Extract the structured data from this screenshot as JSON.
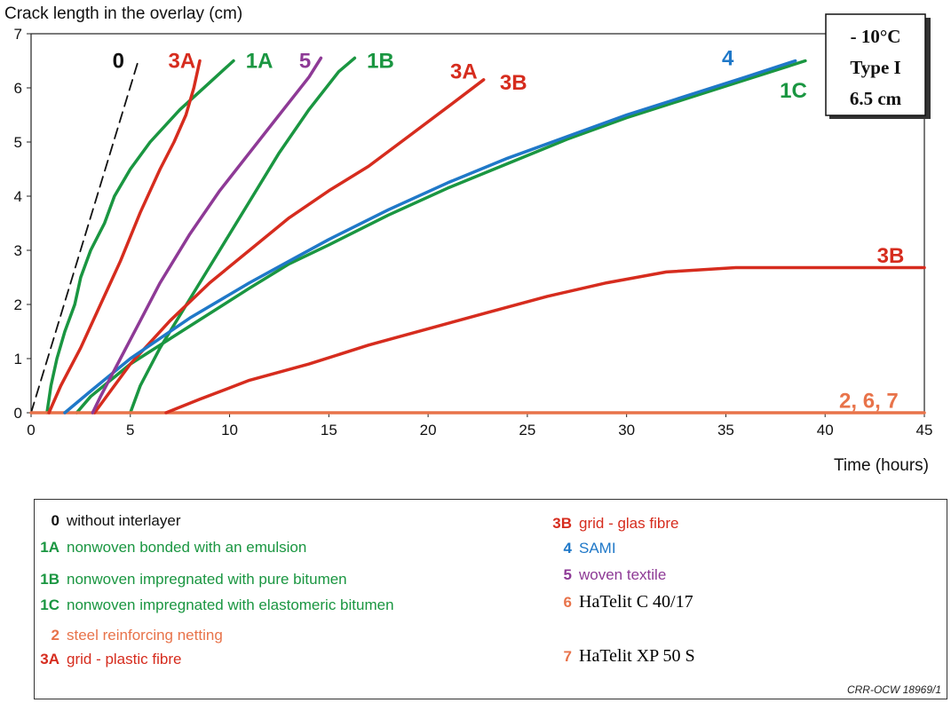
{
  "chart_data": {
    "type": "line",
    "title": "",
    "ylabel": "Crack length in the overlay (cm)",
    "xlabel": "Time (hours)",
    "xlim": [
      0,
      45
    ],
    "ylim": [
      0,
      7
    ],
    "xticks": [
      "0",
      "5",
      "10",
      "15",
      "20",
      "25",
      "30",
      "35",
      "40",
      "45"
    ],
    "yticks": [
      "0",
      "1",
      "2",
      "3",
      "4",
      "5",
      "6",
      "7"
    ],
    "grid": false,
    "info_box": [
      "- 10°C",
      "Type I",
      "6.5 cm"
    ],
    "credit": "CRR-OCW 18969/1",
    "series": [
      {
        "name": "0",
        "color": "#111111",
        "dashed": true,
        "x": [
          0,
          5.4
        ],
        "y": [
          0,
          6.5
        ]
      },
      {
        "name": "1A",
        "color": "#1a9641",
        "x": [
          0.8,
          1.0,
          1.3,
          1.7,
          2.2,
          2.5,
          3.0,
          3.7,
          4.2,
          5.0,
          6.0,
          7.5,
          9.0,
          10.2
        ],
        "y": [
          0,
          0.5,
          1.0,
          1.5,
          2.0,
          2.5,
          3.0,
          3.5,
          4.0,
          4.5,
          5.0,
          5.6,
          6.1,
          6.5
        ]
      },
      {
        "name": "1B",
        "color": "#1a9641",
        "x": [
          5.0,
          5.5,
          6.5,
          8.0,
          9.5,
          11.0,
          12.5,
          14.0,
          15.5,
          16.3
        ],
        "y": [
          0,
          0.5,
          1.2,
          2.1,
          3.0,
          3.9,
          4.8,
          5.6,
          6.3,
          6.55
        ]
      },
      {
        "name": "1C",
        "color": "#1a9641",
        "x": [
          2.3,
          3.0,
          5.0,
          8.0,
          11.0,
          13.0,
          15.0,
          18.0,
          21.0,
          24.0,
          27.0,
          30.0,
          33.0,
          36.0,
          39.0
        ],
        "y": [
          0,
          0.3,
          0.9,
          1.6,
          2.3,
          2.75,
          3.1,
          3.65,
          4.15,
          4.6,
          5.05,
          5.45,
          5.8,
          6.15,
          6.5
        ]
      },
      {
        "name": "2, 6, 7",
        "color": "#e8734a",
        "x": [
          0,
          45
        ],
        "y": [
          0,
          0
        ]
      },
      {
        "name": "3A",
        "color": "#d62c1e",
        "x": [
          0.9,
          1.5,
          2.5,
          3.5,
          4.5,
          5.5,
          6.5,
          7.2,
          7.8,
          8.2,
          8.5
        ],
        "y": [
          0,
          0.5,
          1.2,
          2.0,
          2.8,
          3.7,
          4.5,
          5.0,
          5.5,
          6.0,
          6.5
        ]
      },
      {
        "name": "3A",
        "color": "#d62c1e",
        "x": [
          3.2,
          5.0,
          7.0,
          9.0,
          11.0,
          13.0,
          15.0,
          17.0,
          19.0,
          21.0,
          22.8
        ],
        "y": [
          0,
          0.9,
          1.7,
          2.4,
          3.0,
          3.6,
          4.1,
          4.55,
          5.1,
          5.65,
          6.15
        ]
      },
      {
        "name": "3B",
        "color": "#d62c1e",
        "x": [
          6.8,
          8.5,
          11.0,
          14.0,
          17.0,
          20.0,
          23.0,
          26.0,
          29.0,
          32.0,
          35.5,
          40.0,
          45.0
        ],
        "y": [
          0,
          0.25,
          0.6,
          0.9,
          1.25,
          1.55,
          1.85,
          2.15,
          2.4,
          2.6,
          2.68,
          2.68,
          2.68
        ]
      },
      {
        "name": "4",
        "color": "#1f78c8",
        "x": [
          1.7,
          3.0,
          5.0,
          8.0,
          11.0,
          13.0,
          15.0,
          18.0,
          21.0,
          24.0,
          27.0,
          30.0,
          33.0,
          36.0,
          38.5
        ],
        "y": [
          0,
          0.4,
          1.0,
          1.75,
          2.4,
          2.8,
          3.2,
          3.75,
          4.25,
          4.7,
          5.1,
          5.5,
          5.85,
          6.2,
          6.5
        ]
      },
      {
        "name": "5",
        "color": "#8e3a96",
        "x": [
          3.1,
          3.5,
          4.5,
          5.5,
          6.5,
          8.0,
          9.5,
          11.0,
          12.5,
          14.0,
          14.6
        ],
        "y": [
          0,
          0.3,
          1.0,
          1.7,
          2.4,
          3.3,
          4.1,
          4.8,
          5.5,
          6.2,
          6.55
        ]
      }
    ],
    "curve_labels": [
      {
        "text": "0",
        "color": "#111111",
        "x": 4.4,
        "y": 6.5
      },
      {
        "text": "3A",
        "color": "#d62c1e",
        "x": 7.6,
        "y": 6.5
      },
      {
        "text": "1A",
        "color": "#1a9641",
        "x": 11.5,
        "y": 6.5
      },
      {
        "text": "5",
        "color": "#8e3a96",
        "x": 13.8,
        "y": 6.5
      },
      {
        "text": "1B",
        "color": "#1a9641",
        "x": 17.6,
        "y": 6.5
      },
      {
        "text": "3A",
        "color": "#d62c1e",
        "x": 21.8,
        "y": 6.3
      },
      {
        "text": "3B",
        "color": "#d62c1e",
        "x": 24.3,
        "y": 6.1
      },
      {
        "text": "4",
        "color": "#1f78c8",
        "x": 35.1,
        "y": 6.55
      },
      {
        "text": "1C",
        "color": "#1a9641",
        "x": 38.4,
        "y": 5.95
      },
      {
        "text": "3B",
        "color": "#d62c1e",
        "x": 43.3,
        "y": 2.9
      },
      {
        "text": "2, 6, 7",
        "color": "#e8734a",
        "x": 42.2,
        "y": 0.22
      }
    ]
  },
  "legend": {
    "left": [
      {
        "code": "0",
        "text": "without interlayer",
        "code_color": "#111111",
        "text_color": "#111111"
      },
      {
        "code": "1A",
        "text": "nonwoven bonded with an emulsion",
        "code_color": "#1a9641",
        "text_color": "#1a9641"
      },
      {
        "code": "1B",
        "text": "nonwoven impregnated with pure bitumen",
        "code_color": "#1a9641",
        "text_color": "#1a9641"
      },
      {
        "code": "1C",
        "text": "nonwoven impregnated with elastomeric bitumen",
        "code_color": "#1a9641",
        "text_color": "#1a9641"
      },
      {
        "code": "2",
        "text": "steel reinforcing netting",
        "code_color": "#e8734a",
        "text_color": "#e8734a"
      },
      {
        "code": "3A",
        "text": "grid - plastic fibre",
        "code_color": "#d62c1e",
        "text_color": "#d62c1e"
      }
    ],
    "right": [
      {
        "code": "3B",
        "text": "grid - glas fibre",
        "code_color": "#d62c1e",
        "text_color": "#d62c1e"
      },
      {
        "code": "4",
        "text": "SAMI",
        "code_color": "#1f78c8",
        "text_color": "#1f78c8"
      },
      {
        "code": "5",
        "text": "woven textile",
        "code_color": "#8e3a96",
        "text_color": "#8e3a96"
      },
      {
        "code": "6",
        "text": "HaTelit C 40/17",
        "code_color": "#e8734a",
        "text_color": "#000000"
      },
      {
        "code": "7",
        "text": "HaTelit XP 50 S",
        "code_color": "#e8734a",
        "text_color": "#000000"
      }
    ]
  }
}
